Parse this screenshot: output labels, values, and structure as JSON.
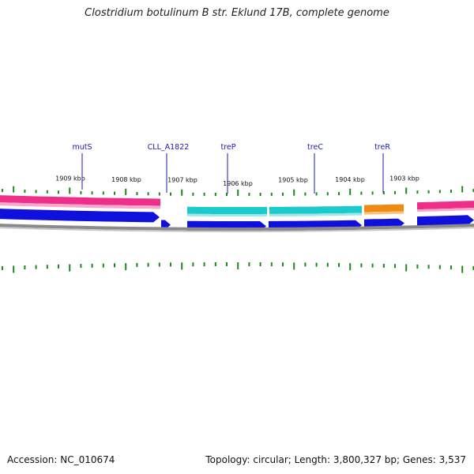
{
  "title": "Clostridium botulinum B str. Eklund 17B, complete genome",
  "accession": "Accession: NC_010674",
  "summary": "Topology: circular; Length: 3,800,327 bp; Genes: 3,537",
  "colors": {
    "gene": "#1010dd",
    "cds_pink": "#ee2f8a",
    "cds_teal": "#1cc9cc",
    "cds_orange": "#f08b12",
    "backbone": "#8a8a8a",
    "tick": "#1a8a1a",
    "label": "#1a1ab0"
  },
  "ticks": [
    {
      "label": "1909 kbp"
    },
    {
      "label": "1908 kbp"
    },
    {
      "label": "1907 kbp"
    },
    {
      "label": "1906 kbp"
    },
    {
      "label": "1905 kbp"
    },
    {
      "label": "1904 kbp"
    },
    {
      "label": "1903 kbp"
    }
  ],
  "gene_labels": [
    {
      "name": "mutS"
    },
    {
      "name": "CLL_A1822"
    },
    {
      "name": "treP"
    },
    {
      "name": "treC"
    },
    {
      "name": "treR"
    }
  ]
}
